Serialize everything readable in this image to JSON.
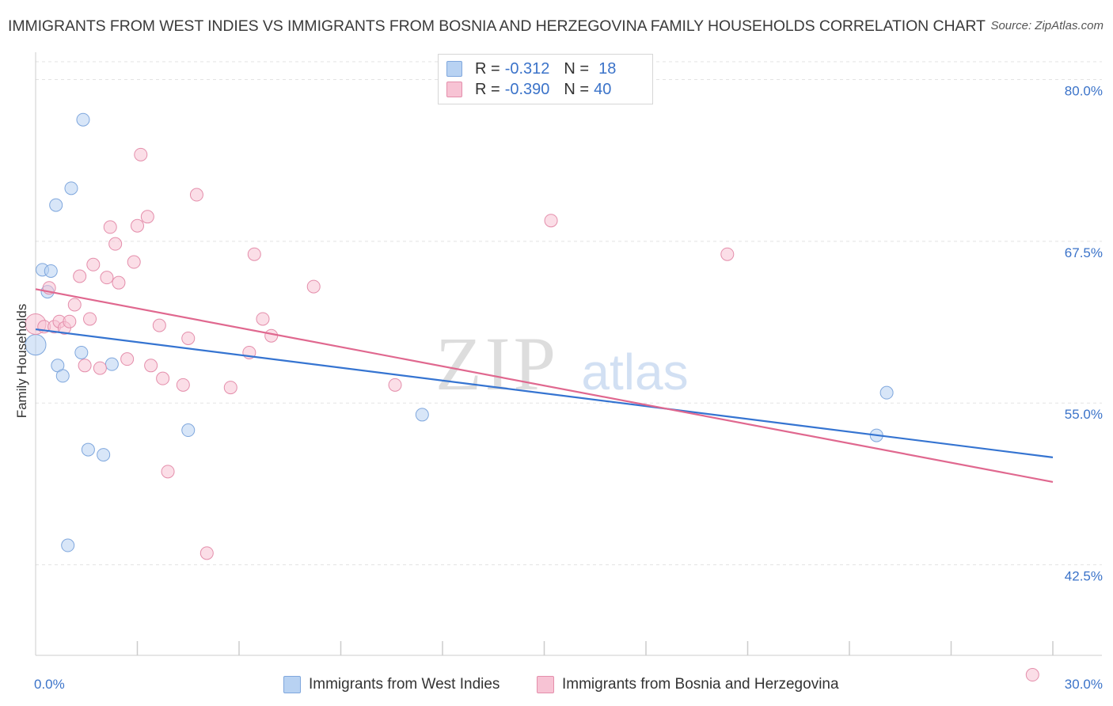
{
  "title": "IMMIGRANTS FROM WEST INDIES VS IMMIGRANTS FROM BOSNIA AND HERZEGOVINA FAMILY HOUSEHOLDS CORRELATION CHART",
  "source": "Source: ZipAtlas.com",
  "colors": {
    "blue_fill": "#b8d2f2",
    "blue_stroke": "#7fa7dd",
    "blue_line": "#3574d1",
    "pink_fill": "#f7c3d4",
    "pink_stroke": "#e48eab",
    "pink_line": "#e0688f",
    "tick_text": "#3b73c9",
    "grid": "#e3e3e3"
  },
  "stats": [
    {
      "r_label": "R =",
      "r_value": "-0.312",
      "n_label": "N =",
      "n_value": "18"
    },
    {
      "r_label": "R =",
      "r_value": "-0.390",
      "n_label": "N =",
      "n_value": "40"
    }
  ],
  "watermark": {
    "zip": "ZIP",
    "atlas": "atlas"
  },
  "chart_data": {
    "type": "scatter",
    "title": "IMMIGRANTS FROM WEST INDIES VS IMMIGRANTS FROM BOSNIA AND HERZEGOVINA FAMILY HOUSEHOLDS CORRELATION CHART",
    "xlabel": "",
    "ylabel": "Family Households",
    "xlim": [
      0,
      30
    ],
    "ylim": [
      35.5,
      81.5
    ],
    "x_tick_labels": [
      "0.0%",
      "30.0%"
    ],
    "y_ticks": [
      42.5,
      55.0,
      67.5,
      80.0
    ],
    "y_tick_labels": [
      "42.5%",
      "55.0%",
      "67.5%",
      "80.0%"
    ],
    "grid": true,
    "legend_position": "bottom",
    "series": [
      {
        "name": "Immigrants from West Indies",
        "color": "blue",
        "points": [
          {
            "x": 0.0,
            "y": 59.5,
            "big": true
          },
          {
            "x": 0.2,
            "y": 65.3
          },
          {
            "x": 0.35,
            "y": 63.6
          },
          {
            "x": 0.45,
            "y": 65.2
          },
          {
            "x": 0.6,
            "y": 70.3
          },
          {
            "x": 0.65,
            "y": 57.9
          },
          {
            "x": 0.8,
            "y": 57.1
          },
          {
            "x": 0.95,
            "y": 44.0
          },
          {
            "x": 1.05,
            "y": 71.6
          },
          {
            "x": 1.35,
            "y": 58.9
          },
          {
            "x": 1.4,
            "y": 76.9
          },
          {
            "x": 1.55,
            "y": 51.4
          },
          {
            "x": 2.0,
            "y": 51.0
          },
          {
            "x": 2.25,
            "y": 58.0
          },
          {
            "x": 4.5,
            "y": 52.9
          },
          {
            "x": 11.4,
            "y": 54.1
          },
          {
            "x": 24.8,
            "y": 52.5
          },
          {
            "x": 25.1,
            "y": 55.8
          }
        ]
      },
      {
        "name": "Immigrants from Bosnia and Herzegovina",
        "color": "pink",
        "points": [
          {
            "x": 0.0,
            "y": 61.1,
            "big": true
          },
          {
            "x": 0.25,
            "y": 60.9
          },
          {
            "x": 0.4,
            "y": 63.9
          },
          {
            "x": 0.55,
            "y": 60.9
          },
          {
            "x": 0.7,
            "y": 61.3
          },
          {
            "x": 0.85,
            "y": 60.8
          },
          {
            "x": 1.0,
            "y": 61.3
          },
          {
            "x": 1.15,
            "y": 62.6
          },
          {
            "x": 1.3,
            "y": 64.8
          },
          {
            "x": 1.45,
            "y": 57.9
          },
          {
            "x": 1.6,
            "y": 61.5
          },
          {
            "x": 1.7,
            "y": 65.7
          },
          {
            "x": 1.9,
            "y": 57.7
          },
          {
            "x": 2.1,
            "y": 64.7
          },
          {
            "x": 2.2,
            "y": 68.6
          },
          {
            "x": 2.35,
            "y": 67.3
          },
          {
            "x": 2.45,
            "y": 64.3
          },
          {
            "x": 2.7,
            "y": 58.4
          },
          {
            "x": 2.9,
            "y": 65.9
          },
          {
            "x": 3.0,
            "y": 68.7
          },
          {
            "x": 3.1,
            "y": 74.2
          },
          {
            "x": 3.3,
            "y": 69.4
          },
          {
            "x": 3.4,
            "y": 57.9
          },
          {
            "x": 3.65,
            "y": 61.0
          },
          {
            "x": 3.75,
            "y": 56.9
          },
          {
            "x": 3.9,
            "y": 49.7
          },
          {
            "x": 4.35,
            "y": 56.4
          },
          {
            "x": 4.5,
            "y": 60.0
          },
          {
            "x": 4.75,
            "y": 71.1
          },
          {
            "x": 5.05,
            "y": 43.4
          },
          {
            "x": 5.75,
            "y": 56.2
          },
          {
            "x": 6.3,
            "y": 58.9
          },
          {
            "x": 6.45,
            "y": 66.5
          },
          {
            "x": 6.7,
            "y": 61.5
          },
          {
            "x": 6.95,
            "y": 60.2
          },
          {
            "x": 8.2,
            "y": 64.0
          },
          {
            "x": 10.6,
            "y": 56.4
          },
          {
            "x": 15.2,
            "y": 69.1
          },
          {
            "x": 20.4,
            "y": 66.5
          },
          {
            "x": 29.4,
            "y": 34.0
          }
        ]
      }
    ],
    "trend_lines": [
      {
        "series": "Immigrants from West Indies",
        "x": [
          0,
          30
        ],
        "y": [
          60.7,
          50.8
        ]
      },
      {
        "series": "Immigrants from Bosnia and Herzegovina",
        "x": [
          0,
          30
        ],
        "y": [
          63.8,
          48.9
        ]
      }
    ]
  }
}
